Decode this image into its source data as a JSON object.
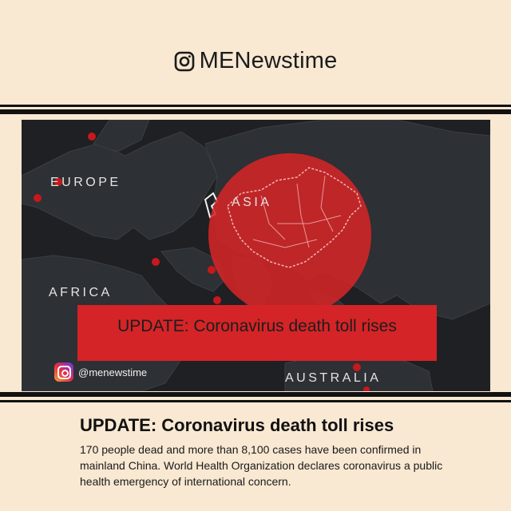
{
  "header": {
    "brand": "MENewstime",
    "brand_icon": "instagram-icon"
  },
  "map": {
    "regions": {
      "europe": "EUROPE",
      "asia": "ASIA",
      "africa": "AFRICA",
      "australia": "AUSTRALIA"
    },
    "banner": "UPDATE: Coronavirus death toll rises",
    "handle": "@menewstime",
    "colors": {
      "background": "#1e2024",
      "outbreak": "#d42427"
    }
  },
  "article": {
    "headline": "UPDATE: Coronavirus death toll rises",
    "body": "170 people dead and more than 8,100 cases have been confirmed in mainland China. World Health Organization declares coronavirus a public health emergency of international concern."
  },
  "colors": {
    "page_bg": "#f9e8d2",
    "accent": "#d42427"
  }
}
